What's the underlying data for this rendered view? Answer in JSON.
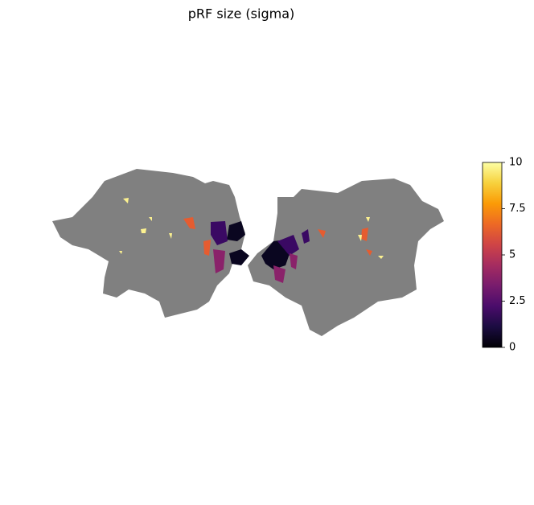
{
  "chart_data": {
    "type": "colorbar",
    "title": "pRF size (sigma)",
    "colormap": "inferno",
    "clim": [
      0,
      10
    ],
    "ticks": [
      0,
      2.5,
      5,
      7.5,
      10
    ]
  }
}
